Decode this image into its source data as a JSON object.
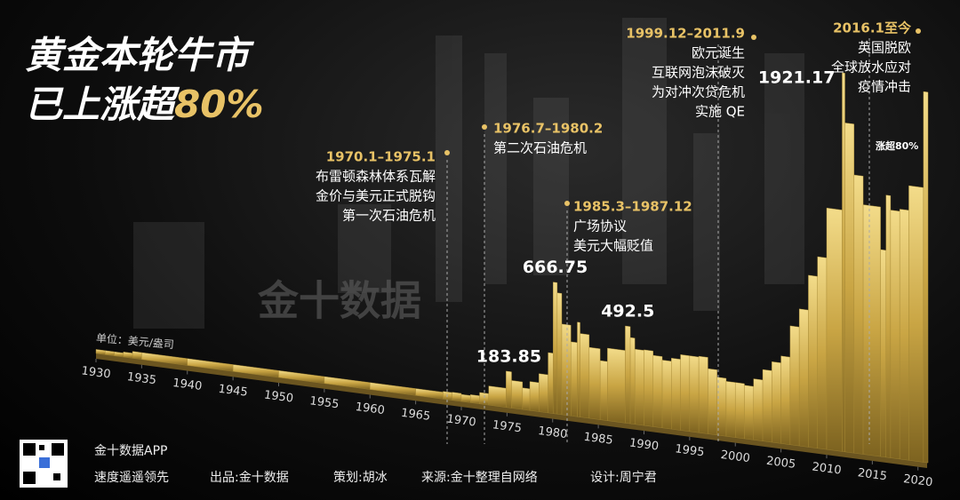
{
  "chart_data": {
    "type": "bar",
    "title": "黄金本轮牛市",
    "subtitle": "已上涨超",
    "subtitle_highlight": "80%",
    "unit": "单位：美元/盎司",
    "rise_label": "涨超80%",
    "color": "#c9a544",
    "x": [
      1930,
      1931,
      1932,
      1933,
      1934,
      1935,
      1940,
      1945,
      1950,
      1955,
      1960,
      1965,
      1968,
      1969,
      1970,
      1971,
      1972,
      1973,
      1974.9,
      1975.5,
      1976.7,
      1977.5,
      1978.5,
      1979.5,
      1980.05,
      1980.5,
      1981,
      1982,
      1982.7,
      1983,
      1984,
      1985.2,
      1986,
      1987.95,
      1988.5,
      1989,
      1990,
      1991,
      1992,
      1993,
      1994,
      1995,
      1996,
      1997,
      1998,
      1999,
      2000,
      2001,
      2002,
      2003,
      2004,
      2005,
      2006,
      2007,
      2008,
      2009,
      2010,
      2011.7,
      2012,
      2013,
      2014,
      2015.9,
      2016.5,
      2017,
      2018,
      2019,
      2020.6
    ],
    "values": [
      20.67,
      20.67,
      20.67,
      26,
      35,
      35,
      35,
      35,
      35,
      35,
      35,
      35,
      39,
      41,
      36,
      41,
      58,
      97,
      183.85,
      140,
      110,
      147,
      193,
      306,
      666.75,
      615,
      460,
      376,
      480,
      424,
      360,
      300,
      368,
      492.5,
      437,
      381,
      384,
      362,
      344,
      360,
      384,
      384,
      388,
      331,
      294,
      279,
      279,
      271,
      310,
      363,
      409,
      444,
      603,
      695,
      872,
      972,
      1225,
      1921.17,
      1669,
      1411,
      1266,
      1050,
      1330,
      1257,
      1268,
      1393,
      1880
    ],
    "value_labels": [
      null,
      null,
      null,
      null,
      null,
      null,
      null,
      null,
      null,
      null,
      null,
      null,
      null,
      null,
      null,
      null,
      null,
      null,
      "183.85",
      null,
      null,
      null,
      null,
      null,
      "666.75",
      null,
      null,
      null,
      null,
      null,
      null,
      null,
      null,
      "492.5",
      null,
      null,
      null,
      null,
      null,
      null,
      null,
      null,
      null,
      null,
      null,
      null,
      null,
      null,
      null,
      null,
      null,
      null,
      null,
      null,
      null,
      null,
      null,
      "1921.17",
      null,
      null,
      null,
      null,
      null,
      null,
      null,
      null,
      null
    ],
    "xlim": [
      1930,
      2021
    ],
    "ylim": [
      0,
      2000
    ],
    "xticks": [
      1930,
      1935,
      1940,
      1945,
      1950,
      1955,
      1960,
      1965,
      1970,
      1975,
      1980,
      1985,
      1990,
      1995,
      2000,
      2005,
      2010,
      2015,
      2020
    ],
    "annotations": [
      {
        "period": "1970.1–1975.1",
        "lines": [
          "布雷顿森林体系瓦解",
          "金价与美元正式脱钩",
          "第一次石油危机"
        ]
      },
      {
        "period": "1976.7–1980.2",
        "lines": [
          "第二次石油危机"
        ]
      },
      {
        "period": "1985.3–1987.12",
        "lines": [
          "广场协议",
          "美元大幅贬值"
        ]
      },
      {
        "period": "1999.12–2011.9",
        "lines": [
          "欧元诞生",
          "互联网泡沫破灭",
          "为对冲次贷危机",
          "实施 QE"
        ]
      },
      {
        "period": "2016.1至今",
        "lines": [
          "英国脱欧",
          "全球放水应对",
          "疫情冲击"
        ]
      }
    ]
  },
  "watermark": "金十数据",
  "footer": {
    "app": "金十数据APP",
    "slogan": "速度遥遥领先",
    "producer": "出品:金十数据",
    "planner": "策划:胡冰",
    "source": "来源:金十整理自网络",
    "designer": "设计:周宁君"
  }
}
